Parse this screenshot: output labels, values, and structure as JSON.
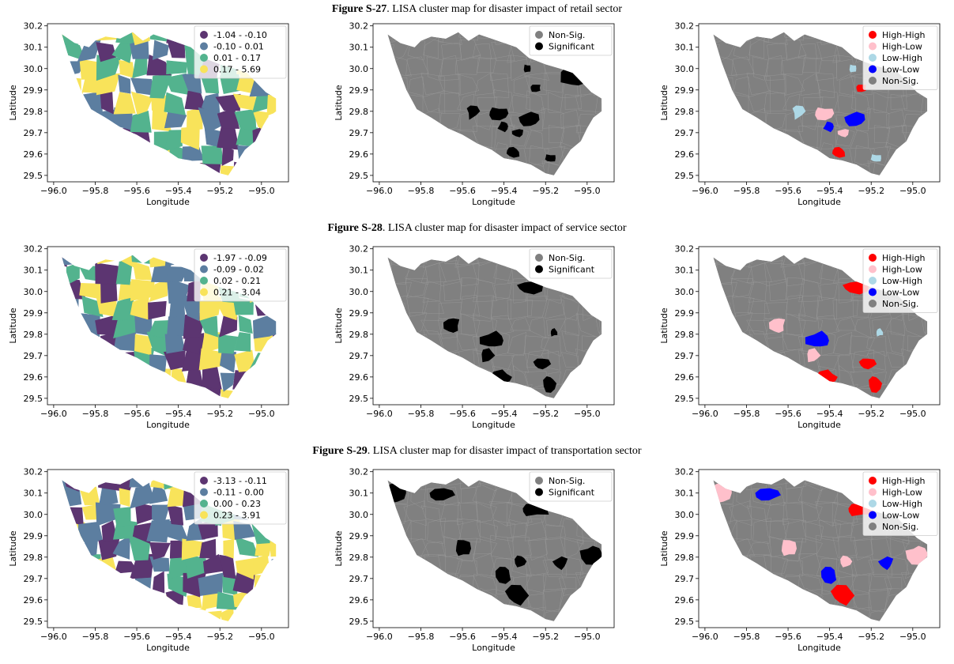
{
  "captions": [
    {
      "bold": "Figure S-27",
      "rest": ". LISA cluster map for disaster impact of retail sector"
    },
    {
      "bold": "Figure S-28",
      "rest": ". LISA cluster map for disaster impact of service sector"
    },
    {
      "bold": "Figure S-29",
      "rest": ". LISA cluster map for disaster impact of transportation sector"
    }
  ],
  "axes": {
    "xlabel": "Longitude",
    "ylabel": "Latitude",
    "xticks": [
      "−96.0",
      "−95.8",
      "−95.6",
      "−95.4",
      "−95.2",
      "−95.0"
    ],
    "yticks": [
      "29.5",
      "29.6",
      "29.7",
      "29.8",
      "29.9",
      "30.0",
      "30.1",
      "30.2"
    ]
  },
  "colors": {
    "viridis": [
      "#440154",
      "#3b528b",
      "#21918c",
      "#5ec962",
      "#fde725"
    ],
    "nonsig": "#808080",
    "significant": "#000000",
    "high_high": "#ff0000",
    "high_low": "#ffc0cb",
    "low_high": "#add8e6",
    "low_low": "#0000ff"
  },
  "chart_data": [
    {
      "type": "choropleth",
      "figure": "S-27",
      "map": "quantiles",
      "legend": [
        "-1.04 - -0.10",
        "-0.10 - 0.01",
        "0.01 - 0.17",
        "0.17 - 5.69"
      ]
    },
    {
      "type": "choropleth",
      "figure": "S-27",
      "map": "significance",
      "legend": [
        "Non-Sig.",
        "Significant"
      ]
    },
    {
      "type": "choropleth",
      "figure": "S-27",
      "map": "clusters",
      "legend": [
        "High-High",
        "High-Low",
        "Low-High",
        "Low-Low",
        "Non-Sig."
      ]
    },
    {
      "type": "choropleth",
      "figure": "S-28",
      "map": "quantiles",
      "legend": [
        "-1.97 - -0.09",
        "-0.09 - 0.02",
        "0.02 - 0.21",
        "0.21 - 3.04"
      ]
    },
    {
      "type": "choropleth",
      "figure": "S-28",
      "map": "significance",
      "legend": [
        "Non-Sig.",
        "Significant"
      ]
    },
    {
      "type": "choropleth",
      "figure": "S-28",
      "map": "clusters",
      "legend": [
        "High-High",
        "High-Low",
        "Low-High",
        "Low-Low",
        "Non-Sig."
      ]
    },
    {
      "type": "choropleth",
      "figure": "S-29",
      "map": "quantiles",
      "legend": [
        "-3.13 - -0.11",
        "-0.11 - 0.00",
        "0.00 - 0.23",
        "0.23 - 3.91"
      ]
    },
    {
      "type": "choropleth",
      "figure": "S-29",
      "map": "significance",
      "legend": [
        "Non-Sig.",
        "Significant"
      ]
    },
    {
      "type": "choropleth",
      "figure": "S-29",
      "map": "clusters",
      "legend": [
        "High-High",
        "High-Low",
        "Low-High",
        "Low-Low",
        "Non-Sig."
      ]
    }
  ]
}
